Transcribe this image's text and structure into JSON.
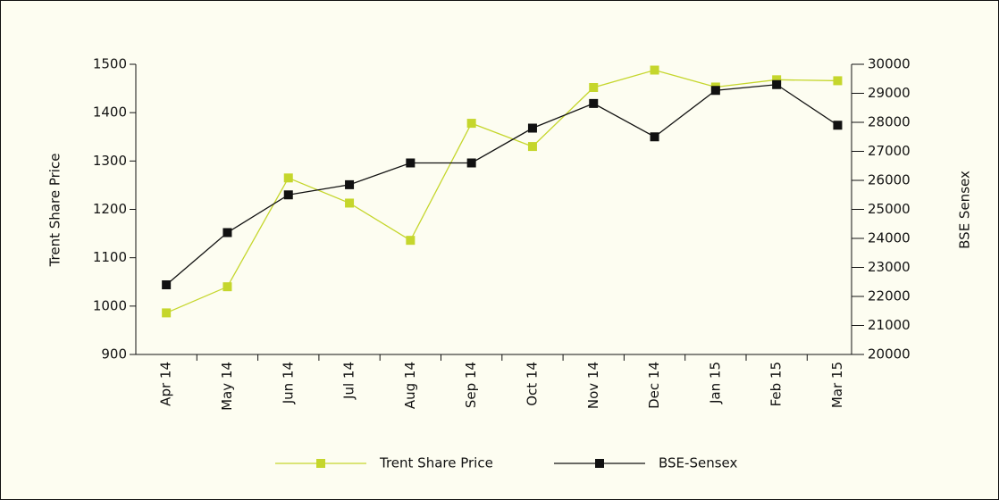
{
  "chart_data": {
    "type": "line",
    "categories": [
      "Apr 14",
      "May 14",
      "Jun 14",
      "Jul 14",
      "Aug 14",
      "Sep 14",
      "Oct 14",
      "Nov 14",
      "Dec 14",
      "Jan 15",
      "Feb 15",
      "Mar 15"
    ],
    "y_label": "Trent Share Price",
    "y2_label": "BSE Sensex",
    "ylim": [
      900,
      1500
    ],
    "yticks": [
      900,
      1000,
      1100,
      1200,
      1300,
      1400,
      1500
    ],
    "y2lim": [
      20000,
      30000
    ],
    "y2ticks": [
      20000,
      21000,
      22000,
      23000,
      24000,
      25000,
      26000,
      27000,
      28000,
      29000,
      30000
    ],
    "legend": "bottom",
    "series": [
      {
        "name": "Trent Share Price",
        "color": "#c5d62c",
        "values": [
          986,
          1040,
          1265,
          1213,
          1136,
          1378,
          1330,
          1452,
          1488,
          1453,
          1468,
          1466
        ]
      },
      {
        "name": "BSE-Sensex",
        "color": "#111111",
        "axis": "y2",
        "values": [
          22400,
          24200,
          25500,
          25850,
          26600,
          26600,
          27800,
          28650,
          27500,
          29100,
          29300,
          27900
        ]
      }
    ]
  }
}
